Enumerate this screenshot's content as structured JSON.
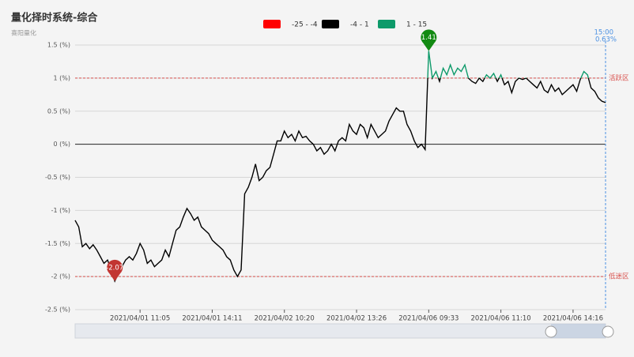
{
  "chart_data": {
    "type": "line",
    "title": "量化择时系统-综合",
    "subtitle": "喜阳量化",
    "categories": [
      null,
      null,
      null,
      null,
      null,
      null,
      null,
      null,
      null,
      null,
      null,
      null,
      null,
      null,
      null,
      null,
      null,
      null,
      "2021/04/01 11:05",
      null,
      null,
      null,
      null,
      null,
      null,
      null,
      null,
      null,
      null,
      null,
      null,
      null,
      null,
      null,
      null,
      null,
      null,
      null,
      "2021/04/01 14:11",
      null,
      null,
      null,
      null,
      null,
      null,
      null,
      null,
      null,
      null,
      null,
      null,
      null,
      null,
      null,
      null,
      null,
      null,
      null,
      "2021/04/02 10:20",
      null,
      null,
      null,
      null,
      null,
      null,
      null,
      null,
      null,
      null,
      null,
      null,
      null,
      null,
      null,
      null,
      null,
      null,
      null,
      "2021/04/02 13:26",
      null,
      null,
      null,
      null,
      null,
      null,
      null,
      null,
      null,
      null,
      null,
      null,
      null,
      null,
      null,
      null,
      null,
      null,
      null,
      "2021/04/06 09:33",
      null,
      null,
      null,
      null,
      null,
      null,
      null,
      null,
      null,
      null,
      null,
      null,
      null,
      null,
      null,
      null,
      null,
      null,
      null,
      "2021/04/06 11:10",
      null,
      null,
      null,
      null,
      null,
      null,
      null,
      null,
      null,
      null,
      null,
      null,
      null,
      null,
      null,
      null,
      null,
      null,
      null,
      "2021/04/06 14:16",
      null,
      null,
      null,
      null,
      null,
      null,
      null,
      null,
      null
    ],
    "series": [
      {
        "values": [
          -1.15,
          -1.25,
          -1.55,
          -1.5,
          -1.58,
          -1.52,
          -1.6,
          -1.7,
          -1.8,
          -1.75,
          -1.9,
          -2.07,
          -1.95,
          -1.85,
          -1.75,
          -1.7,
          -1.75,
          -1.65,
          -1.5,
          -1.6,
          -1.8,
          -1.75,
          -1.85,
          -1.8,
          -1.75,
          -1.6,
          -1.7,
          -1.5,
          -1.3,
          -1.25,
          -1.1,
          -0.97,
          -1.05,
          -1.15,
          -1.1,
          -1.25,
          -1.3,
          -1.35,
          -1.45,
          -1.5,
          -1.55,
          -1.6,
          -1.7,
          -1.75,
          -1.9,
          -2.0,
          -1.9,
          -0.75,
          -0.65,
          -0.5,
          -0.3,
          -0.55,
          -0.5,
          -0.4,
          -0.35,
          -0.15,
          0.05,
          0.05,
          0.2,
          0.1,
          0.15,
          0.05,
          0.2,
          0.1,
          0.12,
          0.05,
          0.0,
          -0.1,
          -0.05,
          -0.15,
          -0.1,
          0.0,
          -0.1,
          0.05,
          0.1,
          0.05,
          0.3,
          0.2,
          0.15,
          0.3,
          0.25,
          0.1,
          0.3,
          0.2,
          0.1,
          0.15,
          0.2,
          0.35,
          0.45,
          0.55,
          0.5,
          0.5,
          0.3,
          0.2,
          0.05,
          -0.05,
          0.0,
          -0.08,
          1.41,
          1.0,
          1.1,
          0.95,
          1.15,
          1.05,
          1.2,
          1.05,
          1.15,
          1.1,
          1.2,
          1.0,
          0.95,
          0.92,
          1.0,
          0.95,
          1.05,
          1.0,
          1.07,
          0.95,
          1.05,
          0.9,
          0.95,
          0.78,
          0.95,
          1.0,
          0.98,
          1.0,
          0.95,
          0.9,
          0.85,
          0.95,
          0.82,
          0.78,
          0.9,
          0.8,
          0.85,
          0.75,
          0.8,
          0.85,
          0.9,
          0.8,
          0.98,
          1.1,
          1.05,
          0.85,
          0.8,
          0.7,
          0.65,
          0.63
        ]
      }
    ],
    "visual_map": {
      "pieces": [
        {
          "min": -25,
          "max": -4,
          "label": "-25 - -4",
          "color": "#ff0000"
        },
        {
          "min": -4,
          "max": 1,
          "label": "-4 - 1",
          "color": "#000000"
        },
        {
          "min": 1,
          "max": 15,
          "label": "1 - 15",
          "color": "#0e9a6a"
        }
      ]
    },
    "ylim": [
      -2.5,
      1.5
    ],
    "yticks": [
      {
        "value": -2.5,
        "label": "-2.5 (%)"
      },
      {
        "value": -2,
        "label": "-2 (%)"
      },
      {
        "value": -1.5,
        "label": "-1.5 (%)"
      },
      {
        "value": -1,
        "label": "-1 (%)"
      },
      {
        "value": -0.5,
        "label": "-0.5 (%)"
      },
      {
        "value": 0,
        "label": "0 (%)"
      },
      {
        "value": 0.5,
        "label": "0.5 (%)"
      },
      {
        "value": 1,
        "label": "1 (%)"
      },
      {
        "value": 1.5,
        "label": "1.5 (%)"
      }
    ],
    "grid": true,
    "mark_lines": [
      {
        "value": 1,
        "label": "活跃区"
      },
      {
        "value": -2,
        "label": "低迷区"
      }
    ],
    "mark_line_color": "#d9534f",
    "mark_extremes": true,
    "mark_colors": {
      "max": "#138a13",
      "min": "#c23531"
    },
    "end_label": {
      "time": "15:00",
      "label": "0.63%"
    }
  }
}
